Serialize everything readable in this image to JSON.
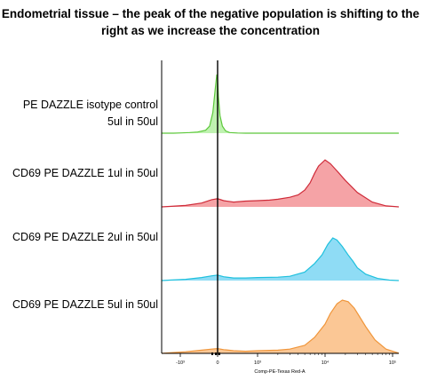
{
  "title_line1": "Endometrial tissue – the peak of the negative population is shifting to the",
  "title_line2": "right as we increase the  concentration",
  "chart_data": {
    "type": "area",
    "xlabel": "Comp-PE-Texas Red-A",
    "xscale": "biexponential",
    "xticks": [
      "-10³",
      "0",
      "10³",
      "10⁴",
      "10⁵"
    ],
    "xlim": [
      -1500,
      200000
    ],
    "grid": false,
    "vertical_marker_at": 0,
    "colors": {
      "isotype_fill": "#bff2b0",
      "isotype_line": "#5cc83a",
      "cd69_1ul_fill": "#f5a3a6",
      "cd69_1ul_line": "#cf2b39",
      "cd69_2ul_fill": "#8fdcf5",
      "cd69_2ul_line": "#1ec0dd",
      "cd69_5ul_fill": "#fbc795",
      "cd69_5ul_line": "#f0963b"
    },
    "series": [
      {
        "name_line1": "PE DAZZLE isotype control",
        "name_line2": "5ul in 50ul",
        "x": [
          -1500,
          -1100,
          -900,
          -700,
          -500,
          -300,
          -200,
          -120,
          -60,
          -20,
          0,
          20,
          60,
          120,
          200,
          300,
          500,
          700,
          1000,
          2000,
          5000,
          10000,
          20000,
          50000,
          100000,
          200000
        ],
        "y": [
          0,
          0,
          0.005,
          0.01,
          0.02,
          0.05,
          0.12,
          0.35,
          0.75,
          1.0,
          0.92,
          0.62,
          0.3,
          0.12,
          0.04,
          0.01,
          0.003,
          0,
          0,
          0,
          0,
          0,
          0,
          0,
          0,
          0
        ]
      },
      {
        "name_line1": "CD69 PE DAZZLE 1ul in 50ul",
        "name_line2": "",
        "x": [
          -1500,
          -1200,
          -800,
          -400,
          -150,
          0,
          150,
          400,
          700,
          1000,
          1500,
          2000,
          3000,
          4000,
          5000,
          6000,
          7000,
          8000,
          10000,
          12000,
          15000,
          20000,
          30000,
          50000,
          80000,
          200000
        ],
        "y": [
          0,
          0.01,
          0.03,
          0.08,
          0.15,
          0.17,
          0.13,
          0.1,
          0.12,
          0.13,
          0.14,
          0.16,
          0.2,
          0.25,
          0.35,
          0.5,
          0.7,
          0.85,
          0.98,
          0.9,
          0.75,
          0.55,
          0.3,
          0.1,
          0.02,
          0
        ]
      },
      {
        "name_line1": "CD69 PE DAZZLE 2ul in 50ul",
        "name_line2": "",
        "x": [
          -1500,
          -1200,
          -800,
          -400,
          -150,
          0,
          150,
          400,
          700,
          1000,
          2000,
          3000,
          5000,
          7000,
          9000,
          11000,
          13000,
          15000,
          18000,
          22000,
          26000,
          30000,
          40000,
          60000,
          90000,
          200000
        ],
        "y": [
          0,
          0.01,
          0.03,
          0.07,
          0.11,
          0.13,
          0.09,
          0.06,
          0.06,
          0.07,
          0.08,
          0.1,
          0.2,
          0.4,
          0.6,
          0.85,
          1.0,
          0.95,
          0.8,
          0.6,
          0.45,
          0.3,
          0.15,
          0.05,
          0.01,
          0
        ]
      },
      {
        "name_line1": "CD69 PE DAZZLE 5ul in 50ul",
        "name_line2": "",
        "x": [
          -1500,
          -1200,
          -800,
          -400,
          -150,
          0,
          150,
          400,
          700,
          1000,
          2000,
          3000,
          5000,
          7000,
          10000,
          12000,
          15000,
          18000,
          22000,
          27000,
          32000,
          40000,
          55000,
          80000,
          120000,
          200000
        ],
        "y": [
          0,
          0.01,
          0.03,
          0.06,
          0.08,
          0.09,
          0.07,
          0.05,
          0.04,
          0.05,
          0.06,
          0.08,
          0.15,
          0.3,
          0.55,
          0.75,
          0.93,
          1.0,
          0.97,
          0.85,
          0.7,
          0.5,
          0.25,
          0.08,
          0.01,
          0
        ]
      }
    ]
  }
}
